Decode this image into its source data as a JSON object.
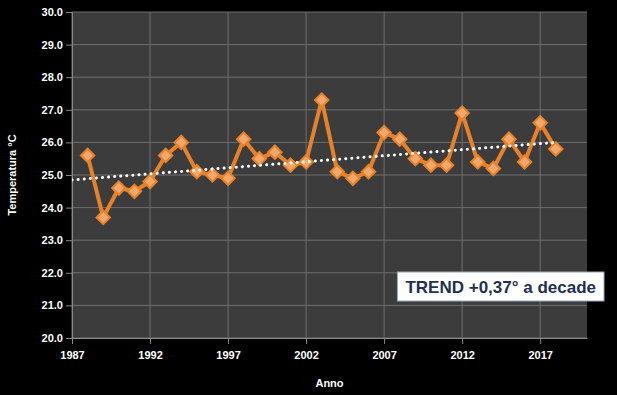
{
  "chart_data": {
    "type": "line",
    "x_label": "Anno",
    "y_label": "Temperatura °C",
    "annotation": "TREND +0,37° a decade",
    "x": [
      1988,
      1989,
      1990,
      1991,
      1992,
      1993,
      1994,
      1995,
      1996,
      1997,
      1998,
      1999,
      2000,
      2001,
      2002,
      2003,
      2004,
      2005,
      2006,
      2007,
      2008,
      2009,
      2010,
      2011,
      2012,
      2013,
      2014,
      2015,
      2016,
      2017,
      2018
    ],
    "series": [
      {
        "type": "line",
        "color": "#e8822a",
        "marker": "diamond",
        "line_style": "solid",
        "values": [
          25.6,
          23.7,
          24.6,
          24.5,
          24.8,
          25.6,
          26.0,
          25.1,
          25.0,
          24.9,
          26.1,
          25.5,
          25.7,
          25.3,
          25.4,
          27.3,
          25.1,
          24.9,
          25.1,
          26.3,
          26.1,
          25.5,
          25.3,
          25.3,
          26.9,
          25.4,
          25.2,
          26.1,
          25.4,
          26.6,
          25.8
        ]
      },
      {
        "type": "line",
        "color": "#ffffff",
        "marker": "none",
        "line_style": "dotted",
        "x": [
          1987,
          2018
        ],
        "values": [
          24.85,
          26.0
        ]
      }
    ],
    "xlim": [
      1987,
      2020
    ],
    "xticks": [
      1987,
      1992,
      1997,
      2002,
      2007,
      2012,
      2017
    ],
    "ylim": [
      20,
      30
    ],
    "yticks": [
      {
        "value": 20,
        "label": "20.0"
      },
      {
        "value": 21,
        "label": "21.0"
      },
      {
        "value": 22,
        "label": "22.0"
      },
      {
        "value": 23,
        "label": "23.0"
      },
      {
        "value": 24,
        "label": "24.0"
      },
      {
        "value": 25,
        "label": "25.0"
      },
      {
        "value": 26,
        "label": "26.0"
      },
      {
        "value": 27,
        "label": "27.0"
      },
      {
        "value": 28,
        "label": "28.0"
      },
      {
        "value": 29,
        "label": "29.0"
      },
      {
        "value": 30,
        "label": "30.0"
      }
    ],
    "grid": true
  }
}
